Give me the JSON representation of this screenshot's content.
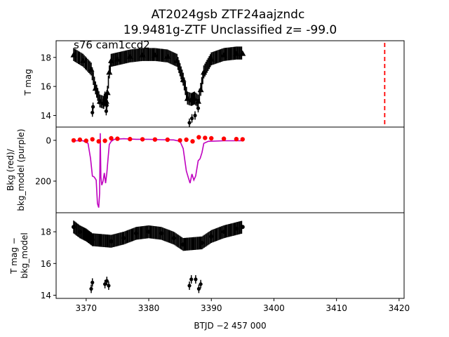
{
  "figure": {
    "title_line1": "AT2024gsb  ZTF24aajzndc",
    "title_line2": "19.9481g-ZTF Unclassified z= -99.0",
    "xlabel": "BTJD −2 457 000",
    "x_tick_labels": [
      "3370",
      "3380",
      "3390",
      "3400",
      "3410",
      "3420"
    ]
  },
  "chart_data": [
    {
      "type": "scatter",
      "panel": "top",
      "annotation": "s76 cam1ccd2",
      "ylabel": "T mag",
      "y_inverted": true,
      "xlim": [
        3365.2,
        3420.8
      ],
      "ylim": [
        19.15,
        13.2
      ],
      "y_tick_labels": [
        "14",
        "16",
        "18"
      ],
      "y_ticks": [
        14,
        16,
        18
      ],
      "series": [
        {
          "marker": "triangle",
          "color": "#000000",
          "note": "dense black error-bar band",
          "x": [
            3368.0,
            3369.5,
            3370.8,
            3371.5,
            3372.2,
            3372.8,
            3373.0,
            3373.2,
            3373.4,
            3373.7,
            3374.0,
            3375.0,
            3377.0,
            3379.0,
            3381.0,
            3383.0,
            3384.5,
            3385.5,
            3386.2,
            3386.8,
            3387.3,
            3387.9,
            3388.3,
            3388.8,
            3390.0,
            3392.0,
            3394.0,
            3395.0
          ],
          "y": [
            18.2,
            17.8,
            17.2,
            15.9,
            15.0,
            14.9,
            15.2,
            15.0,
            15.6,
            17.0,
            17.8,
            17.9,
            18.1,
            18.2,
            18.2,
            18.1,
            17.8,
            16.5,
            15.2,
            15.1,
            15.2,
            15.0,
            15.8,
            17.0,
            17.9,
            18.2,
            18.3,
            18.3
          ]
        },
        {
          "marker": "dot",
          "color": "#000000",
          "x": [
            3371.0,
            3371.1,
            3373.2,
            3373.3,
            3386.5,
            3386.9,
            3387.4,
            3387.9
          ],
          "y": [
            14.2,
            14.6,
            14.3,
            14.7,
            13.5,
            13.8,
            14.0,
            14.5
          ]
        }
      ],
      "reference_line": {
        "x": 3417.7,
        "color": "#ff0000",
        "style": "dashed"
      }
    },
    {
      "type": "line",
      "panel": "middle",
      "ylabel_line1": "Bkg (red)/",
      "ylabel_line2": "bkg_model (purple)",
      "xlim": [
        3365.2,
        3420.8
      ],
      "ylim": [
        -65,
        355
      ],
      "y_tick_labels": [
        "0",
        "200"
      ],
      "y_ticks": [
        0,
        200
      ],
      "series": [
        {
          "name": "bkg_model",
          "color": "#bf00bf",
          "x": [
            3368.0,
            3369.5,
            3370.3,
            3370.7,
            3371.0,
            3371.3,
            3371.6,
            3371.8,
            3372.0,
            3372.15,
            3372.25,
            3372.35,
            3372.5,
            3372.7,
            3372.9,
            3373.1,
            3373.3,
            3373.5,
            3373.7,
            3374.0,
            3374.5,
            3376.0,
            3378.0,
            3380.0,
            3382.0,
            3384.0,
            3385.0,
            3385.5,
            3386.0,
            3386.3,
            3386.6,
            3386.9,
            3387.2,
            3387.5,
            3387.9,
            3388.2,
            3388.5,
            3388.8,
            3389.5,
            3392.0,
            3395.0
          ],
          "y": [
            2,
            2,
            15,
            90,
            175,
            180,
            195,
            310,
            330,
            260,
            -35,
            180,
            220,
            200,
            160,
            210,
            160,
            90,
            20,
            5,
            -5,
            -8,
            -5,
            -5,
            -3,
            -2,
            5,
            40,
            150,
            180,
            210,
            165,
            195,
            175,
            100,
            90,
            60,
            15,
            5,
            2,
            2
          ]
        },
        {
          "name": "bkg",
          "marker": "dot",
          "color": "#ff0000",
          "x": [
            3368.0,
            3369.0,
            3370.0,
            3371.0,
            3372.0,
            3373.0,
            3374.0,
            3375.0,
            3377.0,
            3379.0,
            3381.0,
            3383.0,
            3385.0,
            3386.0,
            3387.0,
            3388.0,
            3389.0,
            3390.0,
            3392.0,
            3394.0,
            3395.0
          ],
          "y": [
            0,
            -3,
            2,
            -5,
            5,
            2,
            -10,
            -8,
            -6,
            -5,
            -4,
            -3,
            0,
            -3,
            5,
            -15,
            -12,
            -10,
            -8,
            -6,
            -5
          ]
        }
      ]
    },
    {
      "type": "scatter",
      "panel": "bottom",
      "ylabel_line1": "T mag −",
      "ylabel_line2": "bkg_model",
      "y_inverted": true,
      "xlim": [
        3365.2,
        3420.8
      ],
      "ylim": [
        19.2,
        13.8
      ],
      "y_tick_labels": [
        "14",
        "16",
        "18"
      ],
      "y_ticks": [
        14,
        16,
        18
      ],
      "series": [
        {
          "marker": "dot",
          "color": "#000000",
          "note": "dense black error-bar band",
          "x": [
            3368.0,
            3369.0,
            3370.0,
            3371.0,
            3374.0,
            3376.0,
            3378.0,
            3380.0,
            3382.0,
            3384.0,
            3385.5,
            3388.5,
            3390.0,
            3392.0,
            3394.0,
            3395.0
          ],
          "y": [
            18.3,
            18.0,
            17.8,
            17.5,
            17.4,
            17.6,
            17.9,
            18.0,
            17.9,
            17.6,
            17.2,
            17.3,
            17.7,
            18.0,
            18.2,
            18.3
          ]
        },
        {
          "marker": "dot",
          "color": "#000000",
          "x": [
            3370.8,
            3371.0,
            3373.0,
            3373.3,
            3373.6,
            3386.5,
            3386.8,
            3387.5,
            3388.0,
            3388.3
          ],
          "y": [
            14.4,
            14.8,
            14.7,
            14.9,
            14.6,
            14.6,
            15.0,
            15.0,
            14.4,
            14.7
          ]
        }
      ]
    }
  ]
}
